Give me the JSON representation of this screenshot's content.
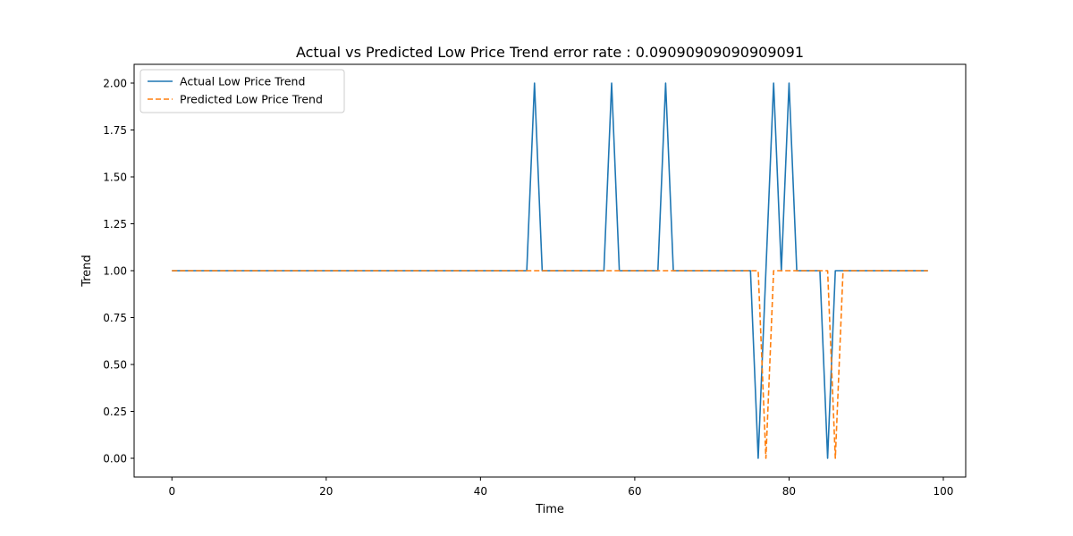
{
  "chart_data": {
    "type": "line",
    "title": "Actual vs Predicted Low Price Trend error rate : 0.09090909090909091",
    "xlabel": "Time",
    "ylabel": "Trend",
    "xlim": [
      -4.9,
      102.9
    ],
    "ylim": [
      -0.1,
      2.1
    ],
    "xticks": [
      0,
      20,
      40,
      60,
      80,
      100
    ],
    "xtick_labels": [
      "0",
      "20",
      "40",
      "60",
      "80",
      "100"
    ],
    "yticks": [
      0,
      0.25,
      0.5,
      0.75,
      1,
      1.25,
      1.5,
      1.75,
      2
    ],
    "ytick_labels": [
      "0.00",
      "0.25",
      "0.50",
      "0.75",
      "1.00",
      "1.25",
      "1.50",
      "1.75",
      "2.00"
    ],
    "grid": false,
    "legend_position": "upper-left",
    "x": [
      0,
      1,
      2,
      3,
      4,
      5,
      6,
      7,
      8,
      9,
      10,
      11,
      12,
      13,
      14,
      15,
      16,
      17,
      18,
      19,
      20,
      21,
      22,
      23,
      24,
      25,
      26,
      27,
      28,
      29,
      30,
      31,
      32,
      33,
      34,
      35,
      36,
      37,
      38,
      39,
      40,
      41,
      42,
      43,
      44,
      45,
      46,
      47,
      48,
      49,
      50,
      51,
      52,
      53,
      54,
      55,
      56,
      57,
      58,
      59,
      60,
      61,
      62,
      63,
      64,
      65,
      66,
      67,
      68,
      69,
      70,
      71,
      72,
      73,
      74,
      75,
      76,
      77,
      78,
      79,
      80,
      81,
      82,
      83,
      84,
      85,
      86,
      87,
      88,
      89,
      90,
      91,
      92,
      93,
      94,
      95,
      96,
      97,
      98
    ],
    "series": [
      {
        "name": "Actual Low Price Trend",
        "color": "#1f77b4",
        "style": "solid",
        "values": [
          1,
          1,
          1,
          1,
          1,
          1,
          1,
          1,
          1,
          1,
          1,
          1,
          1,
          1,
          1,
          1,
          1,
          1,
          1,
          1,
          1,
          1,
          1,
          1,
          1,
          1,
          1,
          1,
          1,
          1,
          1,
          1,
          1,
          1,
          1,
          1,
          1,
          1,
          1,
          1,
          1,
          1,
          1,
          1,
          1,
          1,
          1,
          2,
          1,
          1,
          1,
          1,
          1,
          1,
          1,
          1,
          1,
          2,
          1,
          1,
          1,
          1,
          1,
          1,
          2,
          1,
          1,
          1,
          1,
          1,
          1,
          1,
          1,
          1,
          1,
          1,
          0,
          1,
          2,
          1,
          2,
          1,
          1,
          1,
          1,
          0,
          1,
          1,
          1,
          1,
          1,
          1,
          1,
          1,
          1,
          1,
          1,
          1,
          1
        ]
      },
      {
        "name": "Predicted Low Price Trend",
        "color": "#ff7f0e",
        "style": "dashed",
        "values": [
          1,
          1,
          1,
          1,
          1,
          1,
          1,
          1,
          1,
          1,
          1,
          1,
          1,
          1,
          1,
          1,
          1,
          1,
          1,
          1,
          1,
          1,
          1,
          1,
          1,
          1,
          1,
          1,
          1,
          1,
          1,
          1,
          1,
          1,
          1,
          1,
          1,
          1,
          1,
          1,
          1,
          1,
          1,
          1,
          1,
          1,
          1,
          1,
          1,
          1,
          1,
          1,
          1,
          1,
          1,
          1,
          1,
          1,
          1,
          1,
          1,
          1,
          1,
          1,
          1,
          1,
          1,
          1,
          1,
          1,
          1,
          1,
          1,
          1,
          1,
          1,
          1,
          0,
          1,
          1,
          1,
          1,
          1,
          1,
          1,
          1,
          0,
          1,
          1,
          1,
          1,
          1,
          1,
          1,
          1,
          1,
          1,
          1,
          1
        ]
      }
    ]
  }
}
